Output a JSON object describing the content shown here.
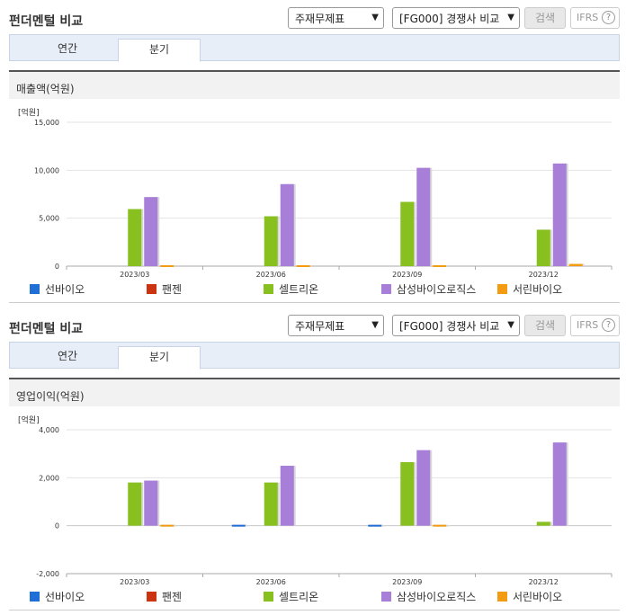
{
  "panels": [
    {
      "title": "펀더멘털 비교",
      "select_statement": "주재무제표",
      "select_peer": "[FG000] 경쟁사 비교",
      "search_label": "검색",
      "ifrs_label": "IFRS",
      "help_icon_text": "?",
      "tabs": [
        {
          "label": "연간"
        },
        {
          "label": "분기"
        }
      ],
      "active_tab": 1,
      "section_label": "매출액(억원)",
      "unit_label": "[억원]"
    },
    {
      "title": "펀더멘털 비교",
      "select_statement": "주재무제표",
      "select_peer": "[FG000] 경쟁사 비교",
      "search_label": "검색",
      "ifrs_label": "IFRS",
      "help_icon_text": "?",
      "tabs": [
        {
          "label": "연간"
        },
        {
          "label": "분기"
        }
      ],
      "active_tab": 1,
      "section_label": "영업이익(억원)",
      "unit_label": "[억원]"
    }
  ],
  "select_arrow_icon": "chevron-down-icon",
  "chart_data": [
    {
      "type": "bar",
      "title": "",
      "ylabel": "[억원]",
      "categories": [
        "2023/03",
        "2023/06",
        "2023/09",
        "2023/12"
      ],
      "ylim": [
        0,
        15000
      ],
      "yticks": [
        0,
        5000,
        10000,
        15000
      ],
      "ytick_labels": [
        "0",
        "5,000",
        "10,000",
        "15,000"
      ],
      "grid": true,
      "legend_position": "bottom",
      "series": [
        {
          "name": "선바이오",
          "color": "#1f6fd6",
          "values": [
            0,
            0,
            0,
            0
          ]
        },
        {
          "name": "팬젠",
          "color": "#cc3311",
          "values": [
            0,
            0,
            0,
            0
          ]
        },
        {
          "name": "셀트리온",
          "color": "#88c020",
          "values": [
            5950,
            5200,
            6700,
            3800
          ]
        },
        {
          "name": "삼성바이오로직스",
          "color": "#a77ed8",
          "values": [
            7200,
            8550,
            10250,
            10700
          ]
        },
        {
          "name": "서린바이오",
          "color": "#f39c12",
          "values": [
            140,
            150,
            160,
            230
          ]
        }
      ]
    },
    {
      "type": "bar",
      "title": "",
      "ylabel": "[억원]",
      "categories": [
        "2023/03",
        "2023/06",
        "2023/09",
        "2023/12"
      ],
      "ylim": [
        -2000,
        4000
      ],
      "yticks": [
        -2000,
        0,
        2000,
        4000
      ],
      "ytick_labels": [
        "-2,000",
        "0",
        "2,000",
        "4,000"
      ],
      "grid": true,
      "legend_position": "bottom",
      "series": [
        {
          "name": "선바이오",
          "color": "#1f6fd6",
          "values": [
            0,
            -40,
            -30,
            0
          ]
        },
        {
          "name": "팬젠",
          "color": "#cc3311",
          "values": [
            0,
            0,
            0,
            0
          ]
        },
        {
          "name": "셀트리온",
          "color": "#88c020",
          "values": [
            1800,
            1800,
            2650,
            160
          ]
        },
        {
          "name": "삼성바이오로직스",
          "color": "#a77ed8",
          "values": [
            1880,
            2500,
            3150,
            3470
          ]
        },
        {
          "name": "서린바이오",
          "color": "#f39c12",
          "values": [
            40,
            0,
            20,
            0
          ]
        }
      ]
    }
  ]
}
